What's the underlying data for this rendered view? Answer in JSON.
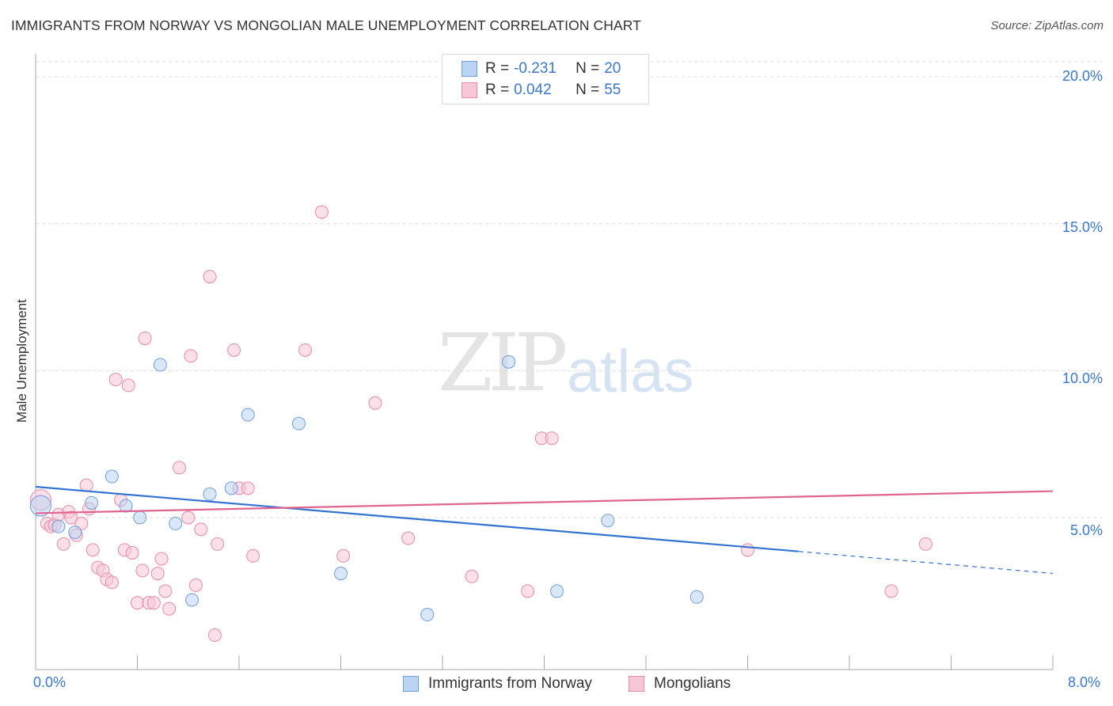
{
  "header": {
    "title": "IMMIGRANTS FROM NORWAY VS MONGOLIAN MALE UNEMPLOYMENT CORRELATION CHART",
    "source": "Source: ZipAtlas.com"
  },
  "watermark": {
    "zip": "ZIP",
    "atlas": "atlas"
  },
  "legend_top": {
    "rows": [
      {
        "r_label": "R =",
        "r_value": "-0.231",
        "n_label": "N =",
        "n_value": "20"
      },
      {
        "r_label": "R =",
        "r_value": "0.042",
        "n_label": "N =",
        "n_value": "55"
      }
    ]
  },
  "legend_bottom": {
    "items": [
      "Immigrants from Norway",
      "Mongolians"
    ]
  },
  "axes": {
    "ylabel": "Male Unemployment",
    "x_ticks": [
      "0.0%",
      "8.0%"
    ],
    "y_ticks": [
      "20.0%",
      "15.0%",
      "10.0%",
      "5.0%"
    ]
  },
  "colors": {
    "norway_fill": "#bcd4f3",
    "norway_stroke": "#6f9fdc",
    "norway_line": "#3373d2",
    "mongol_fill": "#f8c7d7",
    "mongol_stroke": "#e88aa9",
    "mongol_line": "#e0648f",
    "tick_text": "#3a78cf",
    "grid": "#dcdcdc"
  },
  "chart_data": {
    "type": "scatter",
    "title": "IMMIGRANTS FROM NORWAY VS MONGOLIAN MALE UNEMPLOYMENT CORRELATION CHART",
    "xlabel": "",
    "ylabel": "Male Unemployment",
    "xlim": [
      0,
      8
    ],
    "ylim": [
      0,
      20.5
    ],
    "grid": true,
    "legend_placement": "bottom",
    "series": [
      {
        "name": "Immigrants from Norway",
        "points": [
          [
            0.04,
            5.4
          ],
          [
            0.18,
            4.7
          ],
          [
            0.31,
            4.5
          ],
          [
            0.44,
            5.5
          ],
          [
            0.6,
            6.4
          ],
          [
            0.71,
            5.4
          ],
          [
            0.82,
            5.0
          ],
          [
            0.98,
            10.2
          ],
          [
            1.1,
            4.8
          ],
          [
            1.23,
            2.2
          ],
          [
            1.37,
            5.8
          ],
          [
            1.54,
            6.0
          ],
          [
            1.67,
            8.5
          ],
          [
            2.07,
            8.2
          ],
          [
            2.4,
            3.1
          ],
          [
            3.08,
            1.7
          ],
          [
            3.72,
            10.3
          ],
          [
            4.1,
            2.5
          ],
          [
            4.5,
            4.9
          ],
          [
            5.2,
            2.3
          ]
        ],
        "trend": {
          "x": [
            0,
            6
          ],
          "y": [
            6.05,
            3.85
          ]
        },
        "trend_extension": {
          "x": [
            6,
            8
          ],
          "y": [
            3.85,
            3.1
          ]
        }
      },
      {
        "name": "Mongolians",
        "points": [
          [
            0.04,
            5.6
          ],
          [
            0.09,
            4.8
          ],
          [
            0.12,
            4.7
          ],
          [
            0.15,
            4.75
          ],
          [
            0.18,
            5.1
          ],
          [
            0.22,
            4.1
          ],
          [
            0.26,
            5.2
          ],
          [
            0.28,
            5.0
          ],
          [
            0.32,
            4.4
          ],
          [
            0.36,
            4.8
          ],
          [
            0.4,
            6.1
          ],
          [
            0.42,
            5.3
          ],
          [
            0.45,
            3.9
          ],
          [
            0.49,
            3.3
          ],
          [
            0.53,
            3.2
          ],
          [
            0.56,
            2.9
          ],
          [
            0.6,
            2.8
          ],
          [
            0.63,
            9.7
          ],
          [
            0.67,
            5.6
          ],
          [
            0.7,
            3.9
          ],
          [
            0.73,
            9.5
          ],
          [
            0.76,
            3.8
          ],
          [
            0.8,
            2.1
          ],
          [
            0.84,
            3.2
          ],
          [
            0.86,
            11.1
          ],
          [
            0.89,
            2.1
          ],
          [
            0.93,
            2.1
          ],
          [
            0.96,
            3.1
          ],
          [
            0.99,
            3.6
          ],
          [
            1.02,
            2.5
          ],
          [
            1.05,
            1.9
          ],
          [
            1.13,
            6.7
          ],
          [
            1.2,
            5.0
          ],
          [
            1.22,
            10.5
          ],
          [
            1.26,
            2.7
          ],
          [
            1.3,
            4.6
          ],
          [
            1.37,
            13.2
          ],
          [
            1.41,
            1.0
          ],
          [
            1.43,
            4.1
          ],
          [
            1.56,
            10.7
          ],
          [
            1.6,
            6.0
          ],
          [
            1.67,
            6.0
          ],
          [
            1.71,
            3.7
          ],
          [
            2.12,
            10.7
          ],
          [
            2.25,
            15.4
          ],
          [
            2.42,
            3.7
          ],
          [
            2.67,
            8.9
          ],
          [
            2.93,
            4.3
          ],
          [
            3.43,
            3.0
          ],
          [
            3.87,
            2.5
          ],
          [
            3.98,
            7.7
          ],
          [
            4.06,
            7.7
          ],
          [
            5.6,
            3.9
          ],
          [
            6.73,
            2.5
          ],
          [
            7.0,
            4.1
          ]
        ],
        "trend": {
          "x": [
            0,
            8
          ],
          "y": [
            5.15,
            5.9
          ]
        }
      }
    ]
  }
}
